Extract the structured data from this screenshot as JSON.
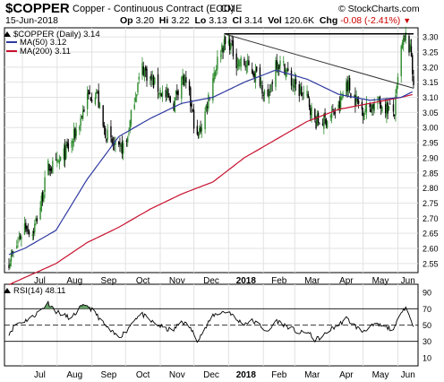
{
  "header": {
    "symbol": "$COPPER",
    "description": "Copper - Continuous Contract (EOD)",
    "exchange": "CME",
    "brand": "© StockCharts.com",
    "date": "15-Jun-2018",
    "open_label": "Op",
    "open": "3.20",
    "high_label": "Hi",
    "high": "3.22",
    "low_label": "Lo",
    "low": "3.13",
    "close_label": "Cl",
    "close": "3.14",
    "vol_label": "Vol",
    "volume": "120.6K",
    "chg_label": "Chg",
    "change": "-0.08 (-2.41%)",
    "change_icon": "down-triangle-icon",
    "down_color": "#cc0000"
  },
  "chart_data": [
    {
      "type": "candlestick",
      "series": [
        {
          "name": "$COPPER (Daily) 3.14",
          "color": "#000000"
        },
        {
          "name": "MA(50) 3.12",
          "color": "#2f3aa0"
        },
        {
          "name": "MA(200) 3.11",
          "color": "#c8102e"
        }
      ],
      "up_color": "#2e8b2e",
      "down_color": "#000000",
      "x_tick_labels": [
        "Jul",
        "Aug",
        "Sep",
        "Oct",
        "Nov",
        "Dec",
        "2018",
        "Feb",
        "Mar",
        "Apr",
        "May",
        "Jun"
      ],
      "y_tick_labels": [
        "3.30",
        "3.25",
        "3.20",
        "3.15",
        "3.10",
        "3.05",
        "3.00",
        "2.95",
        "2.90",
        "2.85",
        "2.80",
        "2.75",
        "2.70",
        "2.65",
        "2.60",
        "2.55"
      ],
      "ylim": [
        2.52,
        3.33
      ],
      "close_anchors": [
        [
          "2017-06-19",
          2.56
        ],
        [
          "2017-06-23",
          2.58
        ],
        [
          "2017-07-03",
          2.68
        ],
        [
          "2017-07-10",
          2.65
        ],
        [
          "2017-07-17",
          2.74
        ],
        [
          "2017-07-24",
          2.87
        ],
        [
          "2017-07-31",
          2.87
        ],
        [
          "2017-08-07",
          2.91
        ],
        [
          "2017-08-14",
          2.95
        ],
        [
          "2017-08-21",
          3.02
        ],
        [
          "2017-08-28",
          3.1
        ],
        [
          "2017-09-05",
          3.12
        ],
        [
          "2017-09-11",
          3.0
        ],
        [
          "2017-09-18",
          2.95
        ],
        [
          "2017-09-25",
          2.92
        ],
        [
          "2017-10-02",
          2.95
        ],
        [
          "2017-10-09",
          3.1
        ],
        [
          "2017-10-16",
          3.2
        ],
        [
          "2017-10-23",
          3.16
        ],
        [
          "2017-10-30",
          3.13
        ],
        [
          "2017-11-06",
          3.1
        ],
        [
          "2017-11-13",
          3.08
        ],
        [
          "2017-11-20",
          3.17
        ],
        [
          "2017-11-27",
          3.1
        ],
        [
          "2017-12-04",
          2.96
        ],
        [
          "2017-12-11",
          3.05
        ],
        [
          "2017-12-18",
          3.17
        ],
        [
          "2017-12-26",
          3.27
        ],
        [
          "2018-01-02",
          3.28
        ],
        [
          "2018-01-08",
          3.22
        ],
        [
          "2018-01-15",
          3.21
        ],
        [
          "2018-01-22",
          3.19
        ],
        [
          "2018-01-29",
          3.16
        ],
        [
          "2018-02-05",
          3.08
        ],
        [
          "2018-02-12",
          3.22
        ],
        [
          "2018-02-20",
          3.2
        ],
        [
          "2018-02-26",
          3.15
        ],
        [
          "2018-03-05",
          3.12
        ],
        [
          "2018-03-12",
          3.1
        ],
        [
          "2018-03-19",
          3.02
        ],
        [
          "2018-03-26",
          3.02
        ],
        [
          "2018-04-02",
          3.04
        ],
        [
          "2018-04-09",
          3.06
        ],
        [
          "2018-04-16",
          3.15
        ],
        [
          "2018-04-23",
          3.1
        ],
        [
          "2018-04-30",
          3.06
        ],
        [
          "2018-05-07",
          3.07
        ],
        [
          "2018-05-14",
          3.08
        ],
        [
          "2018-05-21",
          3.07
        ],
        [
          "2018-05-29",
          3.05
        ],
        [
          "2018-06-04",
          3.26
        ],
        [
          "2018-06-08",
          3.3
        ],
        [
          "2018-06-13",
          3.24
        ],
        [
          "2018-06-15",
          3.14
        ]
      ],
      "ma50_anchors": [
        [
          "2017-06-19",
          2.58
        ],
        [
          "2017-07-03",
          2.6
        ],
        [
          "2017-07-31",
          2.66
        ],
        [
          "2017-08-28",
          2.83
        ],
        [
          "2017-09-25",
          2.97
        ],
        [
          "2017-10-23",
          3.03
        ],
        [
          "2017-11-20",
          3.08
        ],
        [
          "2017-12-18",
          3.1
        ],
        [
          "2018-01-15",
          3.15
        ],
        [
          "2018-02-12",
          3.19
        ],
        [
          "2018-03-12",
          3.16
        ],
        [
          "2018-04-09",
          3.11
        ],
        [
          "2018-05-07",
          3.09
        ],
        [
          "2018-06-04",
          3.1
        ],
        [
          "2018-06-15",
          3.12
        ]
      ],
      "ma200_anchors": [
        [
          "2017-06-19",
          2.48
        ],
        [
          "2017-07-31",
          2.55
        ],
        [
          "2017-08-28",
          2.62
        ],
        [
          "2017-09-25",
          2.67
        ],
        [
          "2017-10-23",
          2.73
        ],
        [
          "2017-11-20",
          2.78
        ],
        [
          "2017-12-18",
          2.82
        ],
        [
          "2018-01-15",
          2.9
        ],
        [
          "2018-02-12",
          2.96
        ],
        [
          "2018-03-12",
          3.02
        ],
        [
          "2018-04-09",
          3.06
        ],
        [
          "2018-05-07",
          3.08
        ],
        [
          "2018-06-04",
          3.1
        ],
        [
          "2018-06-15",
          3.11
        ]
      ],
      "trendline": [
        [
          "2017-12-28",
          3.31
        ],
        [
          "2018-06-15",
          3.13
        ]
      ],
      "top_line": [
        [
          "2017-12-28",
          3.31
        ],
        [
          "2018-06-15",
          3.31
        ]
      ],
      "last_price": 3.14
    },
    {
      "type": "line",
      "series": [
        {
          "name": "RSI(14) 48.11",
          "color": "#000000"
        }
      ],
      "fill_color": "#6aa56a",
      "y_tick_labels": [
        "90",
        "70",
        "50",
        "30",
        "10"
      ],
      "ylim": [
        0,
        100
      ],
      "reference_levels": [
        70,
        50,
        30
      ],
      "x_tick_labels": [
        "Jul",
        "Aug",
        "Sep",
        "Oct",
        "Nov",
        "Dec",
        "2018",
        "Feb",
        "Mar",
        "Apr",
        "May",
        "Jun"
      ],
      "rsi_anchors": [
        [
          "2017-06-19",
          40
        ],
        [
          "2017-06-26",
          52
        ],
        [
          "2017-07-03",
          55
        ],
        [
          "2017-07-10",
          60
        ],
        [
          "2017-07-17",
          68
        ],
        [
          "2017-07-24",
          77
        ],
        [
          "2017-07-31",
          67
        ],
        [
          "2017-08-07",
          62
        ],
        [
          "2017-08-14",
          58
        ],
        [
          "2017-08-21",
          71
        ],
        [
          "2017-08-28",
          74
        ],
        [
          "2017-09-05",
          63
        ],
        [
          "2017-09-11",
          52
        ],
        [
          "2017-09-18",
          42
        ],
        [
          "2017-09-25",
          35
        ],
        [
          "2017-10-02",
          43
        ],
        [
          "2017-10-09",
          58
        ],
        [
          "2017-10-16",
          63
        ],
        [
          "2017-10-23",
          55
        ],
        [
          "2017-10-30",
          50
        ],
        [
          "2017-11-06",
          45
        ],
        [
          "2017-11-13",
          44
        ],
        [
          "2017-11-20",
          55
        ],
        [
          "2017-11-27",
          48
        ],
        [
          "2017-12-04",
          32
        ],
        [
          "2017-12-11",
          45
        ],
        [
          "2017-12-18",
          62
        ],
        [
          "2017-12-26",
          66
        ],
        [
          "2018-01-02",
          66
        ],
        [
          "2018-01-08",
          56
        ],
        [
          "2018-01-15",
          52
        ],
        [
          "2018-01-22",
          55
        ],
        [
          "2018-01-29",
          50
        ],
        [
          "2018-02-05",
          40
        ],
        [
          "2018-02-12",
          56
        ],
        [
          "2018-02-20",
          50
        ],
        [
          "2018-02-26",
          46
        ],
        [
          "2018-03-05",
          40
        ],
        [
          "2018-03-12",
          42
        ],
        [
          "2018-03-19",
          32
        ],
        [
          "2018-03-26",
          36
        ],
        [
          "2018-04-02",
          45
        ],
        [
          "2018-04-09",
          50
        ],
        [
          "2018-04-16",
          58
        ],
        [
          "2018-04-23",
          50
        ],
        [
          "2018-04-30",
          42
        ],
        [
          "2018-05-07",
          48
        ],
        [
          "2018-05-14",
          50
        ],
        [
          "2018-05-21",
          47
        ],
        [
          "2018-05-29",
          45
        ],
        [
          "2018-06-04",
          68
        ],
        [
          "2018-06-08",
          72
        ],
        [
          "2018-06-13",
          55
        ],
        [
          "2018-06-15",
          48
        ]
      ]
    }
  ]
}
